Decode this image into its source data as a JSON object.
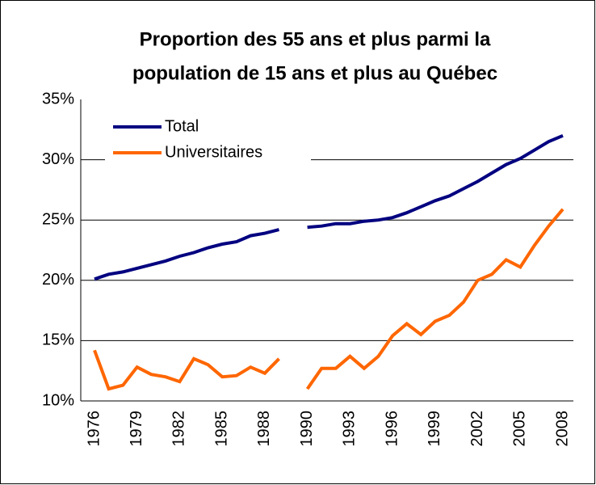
{
  "chart_data": {
    "type": "line",
    "title": [
      "Proportion des 55 ans et plus parmi la",
      "population de 15 ans et plus au Québec"
    ],
    "categories": [
      "1976",
      null,
      null,
      "1979",
      null,
      null,
      "1982",
      null,
      null,
      "1985",
      null,
      null,
      "1988",
      null,
      null,
      "1990",
      null,
      null,
      "1993",
      null,
      null,
      "1996",
      null,
      null,
      "1999",
      null,
      null,
      "2002",
      null,
      null,
      "2005",
      null,
      null,
      "2008"
    ],
    "series": [
      {
        "name": "Total",
        "color": "#000080",
        "values": [
          20.1,
          20.5,
          20.7,
          21.0,
          21.3,
          21.6,
          22.0,
          22.3,
          22.7,
          23.0,
          23.2,
          23.7,
          23.9,
          24.2,
          null,
          24.4,
          24.5,
          24.7,
          24.7,
          24.9,
          25.0,
          25.2,
          25.6,
          26.1,
          26.6,
          27.0,
          27.6,
          28.2,
          28.9,
          29.6,
          30.1,
          30.8,
          31.5,
          32.0
        ]
      },
      {
        "name": "Universitaires",
        "color": "#ff6600",
        "values": [
          14.2,
          11.0,
          11.3,
          12.8,
          12.2,
          12.0,
          11.6,
          13.5,
          13.0,
          12.0,
          12.1,
          12.8,
          12.3,
          13.5,
          null,
          11.0,
          12.7,
          12.7,
          13.7,
          12.7,
          13.7,
          15.4,
          16.4,
          15.5,
          16.6,
          17.1,
          18.2,
          20.0,
          20.5,
          21.7,
          21.1,
          22.9,
          24.5,
          25.9
        ]
      }
    ],
    "ylim": [
      10,
      35
    ],
    "yticks": [
      {
        "value": 10,
        "label": "10%"
      },
      {
        "value": 15,
        "label": "15%"
      },
      {
        "value": 20,
        "label": "20%"
      },
      {
        "value": 25,
        "label": "25%"
      },
      {
        "value": 30,
        "label": "30%"
      },
      {
        "value": 35,
        "label": "35%"
      }
    ],
    "grid": true,
    "legend": "upper left"
  }
}
